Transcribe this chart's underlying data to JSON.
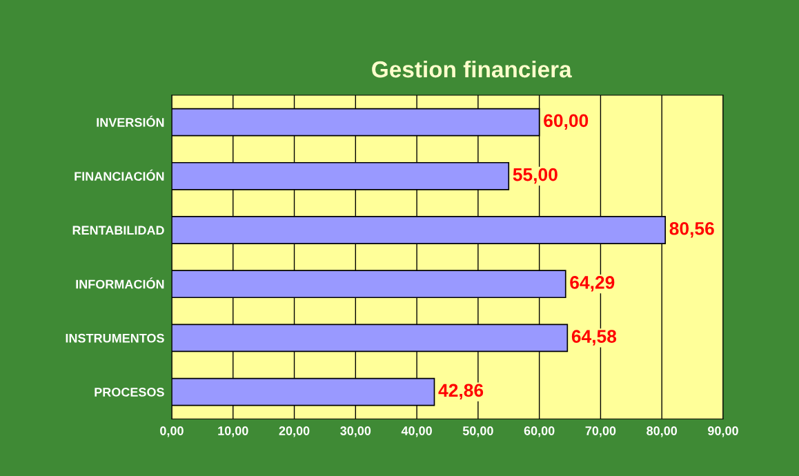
{
  "chart_data": {
    "type": "bar",
    "title": "Gestion financiera",
    "orientation": "horizontal",
    "categories": [
      "INVERSIÓN",
      "FINANCIACIÓN",
      "RENTABILIDAD",
      "INFORMACIÓN",
      "INSTRUMENTOS",
      "PROCESOS"
    ],
    "values": [
      60.0,
      55.0,
      80.56,
      64.29,
      64.58,
      42.86
    ],
    "value_labels": [
      "60,00",
      "55,00",
      "80,56",
      "64,29",
      "64,58",
      "42,86"
    ],
    "color": "#9999ff",
    "xlim": [
      0,
      90
    ],
    "xticks": [
      {
        "value": 0,
        "label": "0,00"
      },
      {
        "value": 10,
        "label": "10,00"
      },
      {
        "value": 20,
        "label": "20,00"
      },
      {
        "value": 30,
        "label": "30,00"
      },
      {
        "value": 40,
        "label": "40,00"
      },
      {
        "value": 50,
        "label": "50,00"
      },
      {
        "value": 60,
        "label": "60,00"
      },
      {
        "value": 70,
        "label": "70,00"
      },
      {
        "value": 80,
        "label": "80,00"
      },
      {
        "value": 90,
        "label": "90,00"
      }
    ],
    "grid": "x"
  }
}
